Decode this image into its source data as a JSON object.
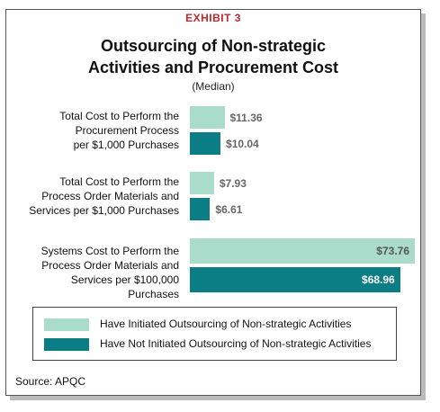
{
  "header": "EXHIBIT 3",
  "source": "Source: APQC",
  "chart_data": {
    "type": "bar",
    "orientation": "horizontal",
    "title": "Outsourcing of Non-strategic Activities and Procurement Cost",
    "subtitle": "(Median)",
    "categories": [
      [
        "Total Cost to Perform the",
        "Procurement Process",
        "per $1,000 Purchases"
      ],
      [
        "Total Cost to Perform the",
        "Process Order Materials and",
        "Services per $1,000 Purchases"
      ],
      [
        "Systems Cost to Perform the",
        "Process Order Materials and",
        "Services per $100,000 Purchases"
      ]
    ],
    "series": [
      {
        "name": "Have Initiated Outsourcing of Non-strategic Activities",
        "color": "#a9dcca",
        "values": [
          11.36,
          7.93,
          73.76
        ],
        "value_labels": [
          "$11.36",
          "$7.93",
          "$73.76"
        ]
      },
      {
        "name": "Have Not Initiated Outsourcing of Non-strategic Activities",
        "color": "#0b7d85",
        "values": [
          10.04,
          6.61,
          68.96
        ],
        "value_labels": [
          "$10.04",
          "$6.61",
          "$68.96"
        ]
      }
    ]
  }
}
